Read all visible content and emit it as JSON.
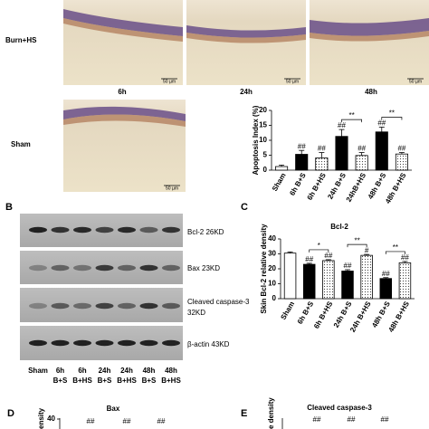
{
  "panel_a": {
    "row_labels": [
      "Burn+HS",
      "Sham"
    ],
    "time_labels": [
      "6h",
      "24h",
      "48h"
    ],
    "scale_bar": "50 µm"
  },
  "chart_a": {
    "type": "bar",
    "y_label": "Apoptosis Index (%)",
    "categories": [
      "Sham",
      "6h B+S",
      "6h B+HS",
      "24h B+S",
      "24hB+HS",
      "48h B+S",
      "48h B+HS"
    ],
    "values": [
      1.2,
      5.3,
      4.1,
      11.3,
      4.9,
      12.8,
      5.4
    ],
    "errors": [
      0.5,
      1.3,
      1.8,
      2.3,
      1.0,
      1.6,
      0.5
    ],
    "fills": [
      "white",
      "black",
      "dotted",
      "black",
      "dotted",
      "black",
      "dotted"
    ],
    "marks": [
      null,
      "##",
      "##",
      "##",
      "##",
      "##",
      "##"
    ],
    "brackets": [
      {
        "from": "24h B+S",
        "to": "24hB+HS",
        "label": "**"
      },
      {
        "from": "48h B+S",
        "to": "48h B+HS",
        "label": "**"
      }
    ],
    "ylim": [
      0,
      20
    ],
    "yticks": [
      0,
      5,
      10,
      15,
      20
    ]
  },
  "panel_b": {
    "letter": "B",
    "band_labels": [
      "Bcl-2 26KD",
      "Bax 23KD",
      "Cleaved caspase-3",
      "32KD",
      "β-actin 43KD"
    ],
    "lane_labels": [
      "Sham",
      "6h",
      "6h",
      "24h",
      "24h",
      "48h",
      "48h"
    ],
    "lane_sublabels": [
      null,
      "B+S",
      "B+HS",
      "B+S",
      "B+HS",
      "B+S",
      "B+HS"
    ]
  },
  "chart_c": {
    "type": "bar",
    "letter": "C",
    "title": "Bcl-2",
    "y_label": "Skin Bcl-2 relative density",
    "categories": [
      "Sham",
      "6h B+S",
      "6h B+HS",
      "24h B+S",
      "24h B+HS",
      "48h B+S",
      "48h B+HS"
    ],
    "values": [
      30.5,
      23,
      25.5,
      18.5,
      29,
      13.5,
      24
    ],
    "errors": [
      0.8,
      0.7,
      0.6,
      0.9,
      0.6,
      0.6,
      0.9
    ],
    "fills": [
      "white",
      "black",
      "dotted",
      "black",
      "dotted",
      "black",
      "dotted"
    ],
    "marks": [
      null,
      "##",
      "##",
      "##",
      "#",
      "##",
      "##"
    ],
    "brackets": [
      {
        "from": "6h B+S",
        "to": "6h B+HS",
        "label": "*"
      },
      {
        "from": "24h B+S",
        "to": "24h B+HS",
        "label": "**"
      },
      {
        "from": "48h B+S",
        "to": "48h B+HS",
        "label": "**"
      }
    ],
    "ylim": [
      0,
      40
    ],
    "yticks": [
      0,
      10,
      20,
      30,
      40
    ]
  },
  "chart_d": {
    "letter": "D",
    "title": "Bax",
    "y_label": "ensity",
    "yticks": [
      40
    ],
    "marks": [
      "##",
      "##",
      "##"
    ]
  },
  "chart_e": {
    "letter": "E",
    "title": "Cleaved caspase-3",
    "y_label": "e density",
    "marks": [
      "##",
      "##",
      "##"
    ]
  }
}
